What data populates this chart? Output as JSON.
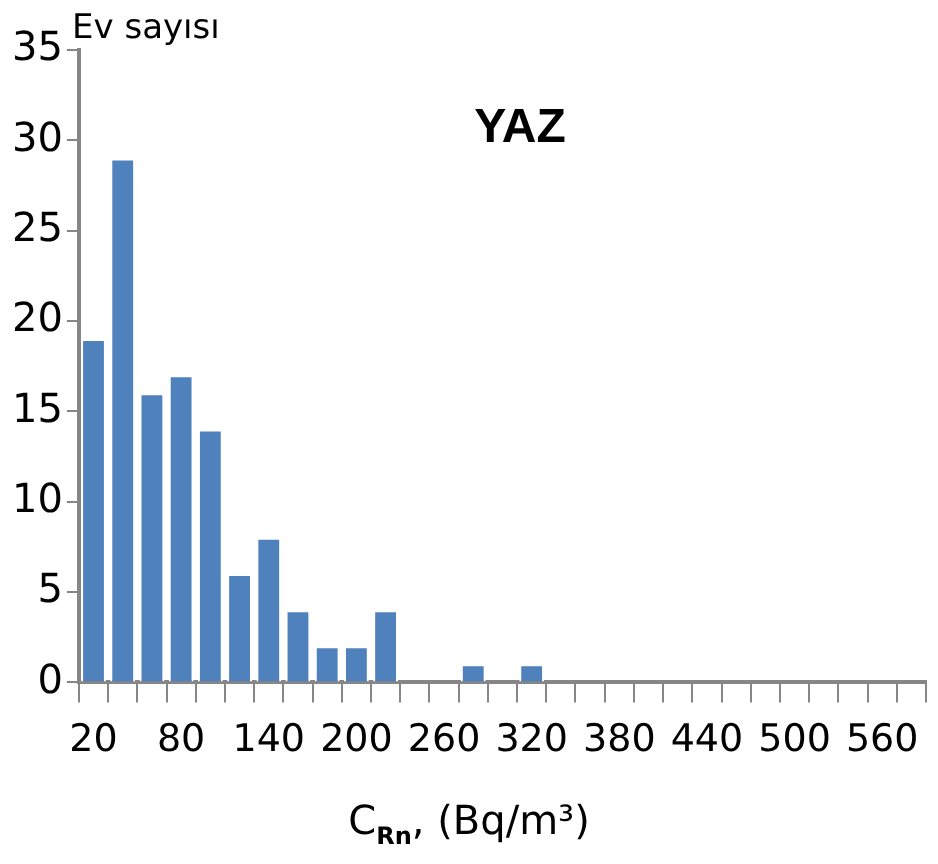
{
  "chart_data": {
    "type": "bar",
    "title": "YAZ",
    "xlabel": "C$_{Rn}$, (Bq/m³)",
    "ylabel": "Ev sayısı",
    "categories": [
      "20",
      null,
      null,
      "80",
      null,
      null,
      "140",
      null,
      null,
      "200",
      null,
      null,
      "260",
      null,
      null,
      "320",
      null,
      null,
      "380",
      null,
      null,
      "440",
      null,
      null,
      "500",
      null,
      null,
      "560",
      null
    ],
    "values": [
      19,
      29,
      16,
      17,
      14,
      6,
      8,
      4,
      2,
      2,
      4,
      0,
      0,
      1,
      0,
      1,
      0,
      0,
      0,
      0,
      0,
      0,
      0,
      0,
      0,
      0,
      0,
      0,
      0
    ],
    "color": "#4f81bd",
    "ylim": [
      0,
      35
    ],
    "yticks": [
      0,
      5,
      10,
      15,
      20,
      25,
      30,
      35
    ],
    "grid": false,
    "legend": false
  }
}
